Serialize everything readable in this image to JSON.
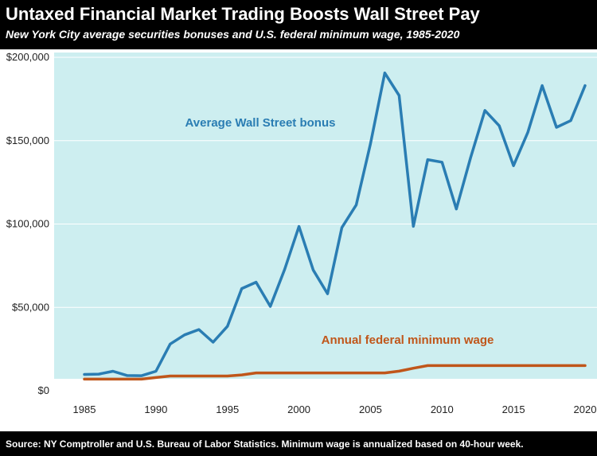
{
  "header": {
    "title": "Untaxed Financial Market Trading Boosts Wall Street Pay",
    "subtitle": "New York City average securities bonuses and U.S. federal minimum wage, 1985-2020"
  },
  "footer": {
    "source": "Source: NY Comptroller and U.S. Bureau of Labor Statistics. Minimum wage is annualized based on 40-hour week."
  },
  "colors": {
    "plot_background": "#cdeef0",
    "bonus_line": "#2a7db3",
    "wage_line": "#c0561a",
    "header_background": "#000000"
  },
  "chart_data": {
    "type": "line",
    "title": "Untaxed Financial Market Trading Boosts Wall Street Pay",
    "subtitle": "New York City average securities bonuses and U.S. federal minimum wage, 1985-2020",
    "xlabel": "",
    "ylabel": "",
    "xlim": [
      1985,
      2020
    ],
    "ylim": [
      0,
      200000
    ],
    "x_ticks": [
      1985,
      1990,
      1995,
      2000,
      2005,
      2010,
      2015,
      2020
    ],
    "y_ticks": [
      0,
      50000,
      100000,
      150000,
      200000
    ],
    "x_tick_labels": [
      "1985",
      "1990",
      "1995",
      "2000",
      "2005",
      "2010",
      "2015",
      "2020"
    ],
    "y_tick_labels": [
      "$0",
      "$50,000",
      "$100,000",
      "$150,000",
      "$200,000"
    ],
    "grid": "horizontal",
    "x": [
      1985,
      1986,
      1987,
      1988,
      1989,
      1990,
      1991,
      1992,
      1993,
      1994,
      1995,
      1996,
      1997,
      1998,
      1999,
      2000,
      2001,
      2002,
      2003,
      2004,
      2005,
      2006,
      2007,
      2008,
      2009,
      2010,
      2011,
      2012,
      2013,
      2014,
      2015,
      2016,
      2017,
      2018,
      2019,
      2020
    ],
    "series": [
      {
        "name": "Average Wall Street bonus",
        "color": "#2a7db3",
        "values": [
          9800,
          10000,
          11700,
          9100,
          9000,
          11700,
          28000,
          33500,
          36700,
          29100,
          38600,
          61300,
          65100,
          50600,
          72800,
          98500,
          72400,
          58200,
          97900,
          111400,
          148100,
          190600,
          177100,
          98600,
          138600,
          137100,
          109000,
          139800,
          168100,
          158900,
          135000,
          155000,
          183000,
          158000,
          162000,
          183000
        ]
      },
      {
        "name": "Annual federal minimum wage",
        "color": "#c0561a",
        "values": [
          6968,
          6968,
          6968,
          6968,
          6968,
          7904,
          8840,
          8840,
          8840,
          8840,
          8840,
          9516,
          10712,
          10712,
          10712,
          10712,
          10712,
          10712,
          10712,
          10712,
          10712,
          10712,
          11752,
          13520,
          15080,
          15080,
          15080,
          15080,
          15080,
          15080,
          15080,
          15080,
          15080,
          15080,
          15080,
          15080
        ]
      }
    ]
  }
}
